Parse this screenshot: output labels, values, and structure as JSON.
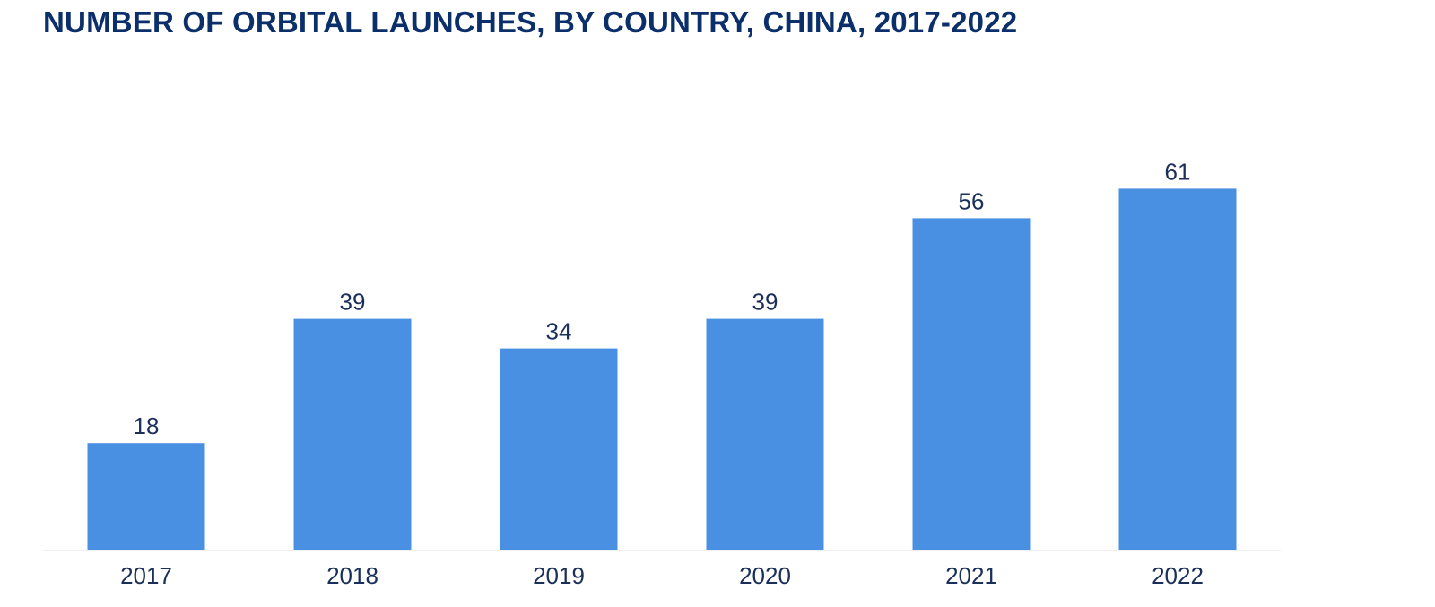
{
  "chart_data": {
    "type": "bar",
    "title": "NUMBER OF ORBITAL LAUNCHES, BY COUNTRY, CHINA, 2017-2022",
    "categories": [
      "2017",
      "2018",
      "2019",
      "2020",
      "2021",
      "2022"
    ],
    "values": [
      18,
      39,
      34,
      39,
      56,
      61
    ],
    "xlabel": "",
    "ylabel": "",
    "ylim": [
      0,
      70
    ],
    "grid": false,
    "legend": "none",
    "bar_color": "#4a90e2",
    "label_color": "#1a2f5a",
    "title_color": "#0b2f6b"
  }
}
